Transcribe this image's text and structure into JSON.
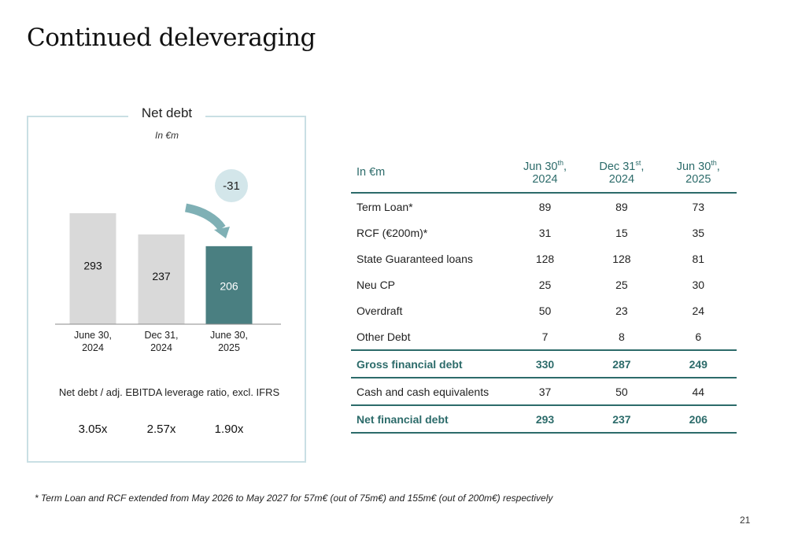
{
  "title": "Continued deleveraging",
  "panel": {
    "title": "Net debt",
    "subtitle": "In €m",
    "change_label": "-31",
    "leverage_title": "Net debt / adj. EBITDA leverage ratio, excl. IFRS",
    "leverage_values": [
      "3.05x",
      "2.57x",
      "1.90x"
    ]
  },
  "chart_data": {
    "type": "bar",
    "title": "Net debt",
    "subtitle": "In €m",
    "categories": [
      "June 30,\n2024",
      "Dec 31,\n2024",
      "June 30,\n2025"
    ],
    "values": [
      293,
      237,
      206
    ],
    "data_labels": [
      "293",
      "237",
      "206"
    ],
    "colors": [
      "#d9d9d9",
      "#d9d9d9",
      "#4a7f81"
    ],
    "ylim": [
      0,
      300
    ],
    "annotation": "-31"
  },
  "table": {
    "headers": [
      "In €m",
      "Jun 30th, 2024",
      "Dec 31st, 2024",
      "Jun 30th, 2025"
    ],
    "header_parts": [
      {
        "main": "Jun 30",
        "sup": "th",
        "rest": ",",
        "year": "2024"
      },
      {
        "main": "Dec 31",
        "sup": "st",
        "rest": ",",
        "year": "2024"
      },
      {
        "main": "Jun 30",
        "sup": "th",
        "rest": ",",
        "year": "2025"
      }
    ],
    "rows": [
      {
        "label": "Term Loan*",
        "values": [
          "89",
          "89",
          "73"
        ],
        "total": false
      },
      {
        "label": "RCF (€200m)*",
        "values": [
          "31",
          "15",
          "35"
        ],
        "total": false
      },
      {
        "label": "State Guaranteed loans",
        "values": [
          "128",
          "128",
          "81"
        ],
        "total": false
      },
      {
        "label": "Neu CP",
        "values": [
          "25",
          "25",
          "30"
        ],
        "total": false
      },
      {
        "label": "Overdraft",
        "values": [
          "50",
          "23",
          "24"
        ],
        "total": false
      },
      {
        "label": "Other Debt",
        "values": [
          "7",
          "8",
          "6"
        ],
        "total": false
      },
      {
        "label": "Gross financial debt",
        "values": [
          "330",
          "287",
          "249"
        ],
        "total": true
      },
      {
        "label": "Cash and cash equivalents",
        "values": [
          "37",
          "50",
          "44"
        ],
        "total": false
      },
      {
        "label": "Net financial debt",
        "values": [
          "293",
          "237",
          "206"
        ],
        "total": true
      }
    ]
  },
  "footnote": "* Term Loan and RCF extended from May 2026 to May 2027 for 57m€  (out of 75m€) and 155m€ (out of 200m€) respectively",
  "page_number": "21",
  "colors": {
    "accent": "#2c6b6a",
    "bar_highlight": "#4a7f81",
    "bar_grey": "#d9d9d9",
    "bubble": "#d3e6ea",
    "panel_border": "#c9dfe4"
  }
}
